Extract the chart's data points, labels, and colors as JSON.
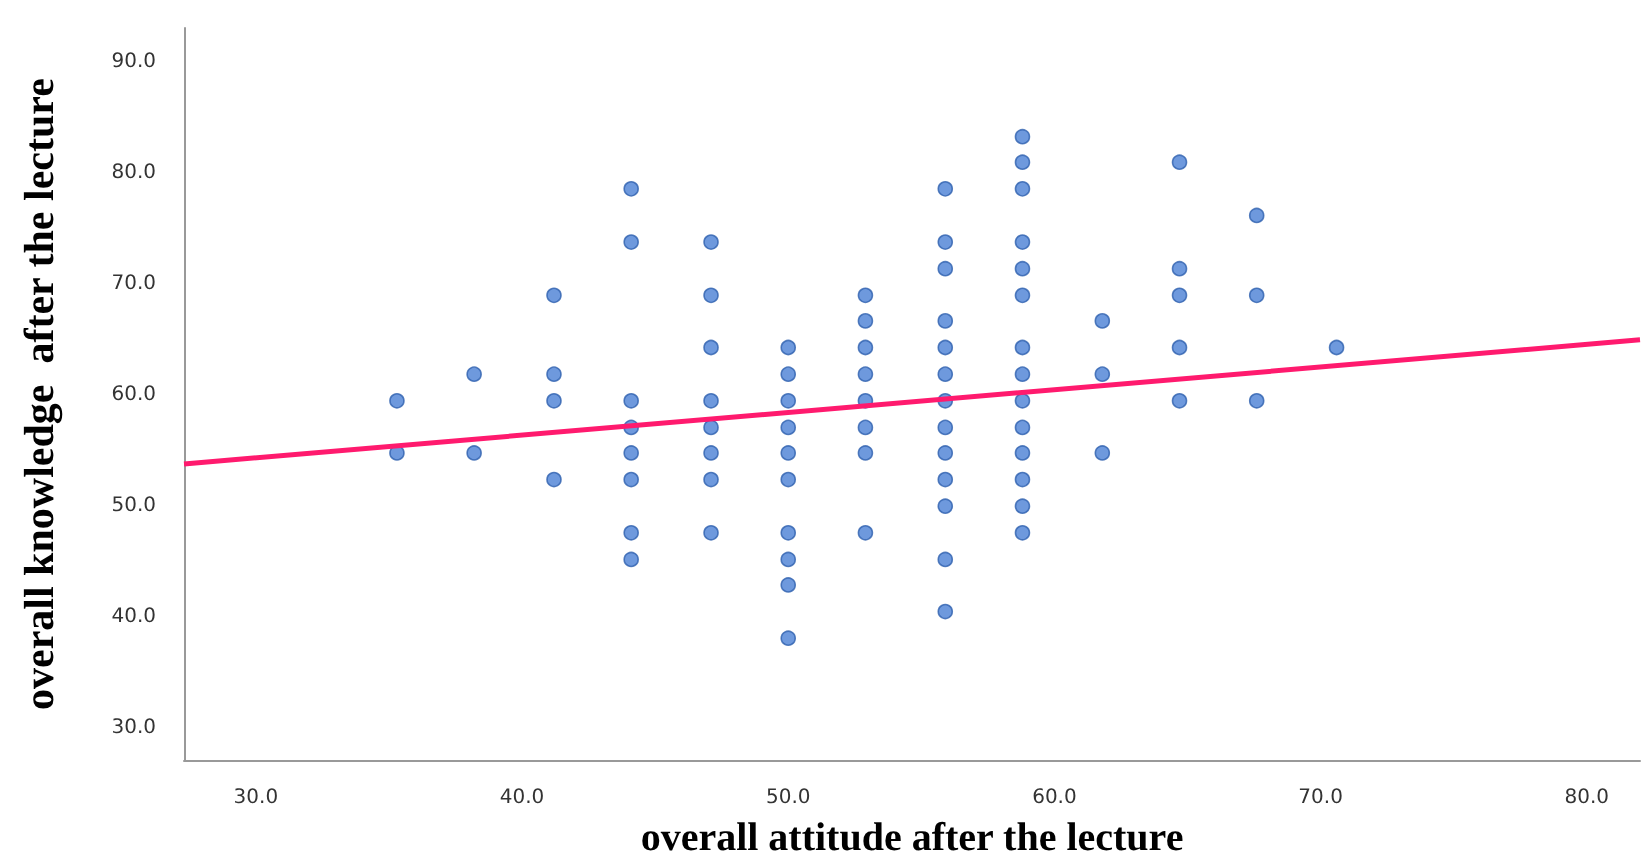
{
  "chart_data": {
    "type": "scatter",
    "xlabel": "overall attitude after the lecture",
    "ylabel": "overall knowledge  after the lecture",
    "xlim": [
      27.3,
      82
    ],
    "ylim": [
      27.1,
      93.1
    ],
    "xticks": [
      {
        "value": 30,
        "label": "30.0"
      },
      {
        "value": 40,
        "label": "40.0"
      },
      {
        "value": 50,
        "label": "50.0"
      },
      {
        "value": 60,
        "label": "60.0"
      },
      {
        "value": 70,
        "label": "70.0"
      },
      {
        "value": 80,
        "label": "80.0"
      }
    ],
    "yticks": [
      {
        "value": 30,
        "label": "30.0"
      },
      {
        "value": 40,
        "label": "40.0"
      },
      {
        "value": 50,
        "label": "50.0"
      },
      {
        "value": 60,
        "label": "60.0"
      },
      {
        "value": 70,
        "label": "70.0"
      },
      {
        "value": 80,
        "label": "80.0"
      },
      {
        "value": 90,
        "label": "90.0"
      }
    ],
    "grid": false,
    "marker": "circle",
    "series": [
      {
        "color": "#4a7fd4",
        "x": [
          35.3,
          35.3,
          38.2,
          38.2,
          41.2,
          41.2,
          41.2,
          41.2,
          44.1,
          44.1,
          44.1,
          44.1,
          44.1,
          44.1,
          44.1,
          44.1,
          47.1,
          47.1,
          47.1,
          47.1,
          47.1,
          47.1,
          47.1,
          47.1,
          50.0,
          50.0,
          50.0,
          50.0,
          50.0,
          50.0,
          50.0,
          50.0,
          50.0,
          50.0,
          52.9,
          52.9,
          52.9,
          52.9,
          52.9,
          52.9,
          52.9,
          52.9,
          55.9,
          55.9,
          55.9,
          55.9,
          55.9,
          55.9,
          55.9,
          55.9,
          55.9,
          55.9,
          55.9,
          55.9,
          55.9,
          58.8,
          58.8,
          58.8,
          58.8,
          58.8,
          58.8,
          58.8,
          58.8,
          58.8,
          58.8,
          58.8,
          58.8,
          58.8,
          58.8,
          61.8,
          61.8,
          61.8,
          64.7,
          64.7,
          64.7,
          64.7,
          64.7,
          67.6,
          67.6,
          67.6,
          70.6
        ],
        "values": [
          59.5,
          54.8,
          61.9,
          54.8,
          69.0,
          61.9,
          59.5,
          52.4,
          78.6,
          73.8,
          59.5,
          57.1,
          54.8,
          52.4,
          47.6,
          45.2,
          73.8,
          69.0,
          64.3,
          59.5,
          57.1,
          54.8,
          52.4,
          47.6,
          64.3,
          61.9,
          59.5,
          57.1,
          54.8,
          52.4,
          47.6,
          45.2,
          42.9,
          38.1,
          69.0,
          66.7,
          64.3,
          61.9,
          59.5,
          57.1,
          54.8,
          47.6,
          78.6,
          73.8,
          71.4,
          66.7,
          64.3,
          61.9,
          59.5,
          57.1,
          54.8,
          52.4,
          50.0,
          45.2,
          40.5,
          83.3,
          81.0,
          78.6,
          73.8,
          71.4,
          69.0,
          64.3,
          61.9,
          59.5,
          57.1,
          54.8,
          52.4,
          50.0,
          47.6,
          66.7,
          61.9,
          54.8,
          81.0,
          71.4,
          69.0,
          64.3,
          59.5,
          76.2,
          69.0,
          59.5,
          64.3
        ]
      },
      {
        "type": "line",
        "color": "#ff1a6e",
        "marker": "none",
        "line_style": "solid",
        "x": [
          27.3,
          82
        ],
        "values": [
          53.8,
          65.0
        ]
      }
    ]
  }
}
